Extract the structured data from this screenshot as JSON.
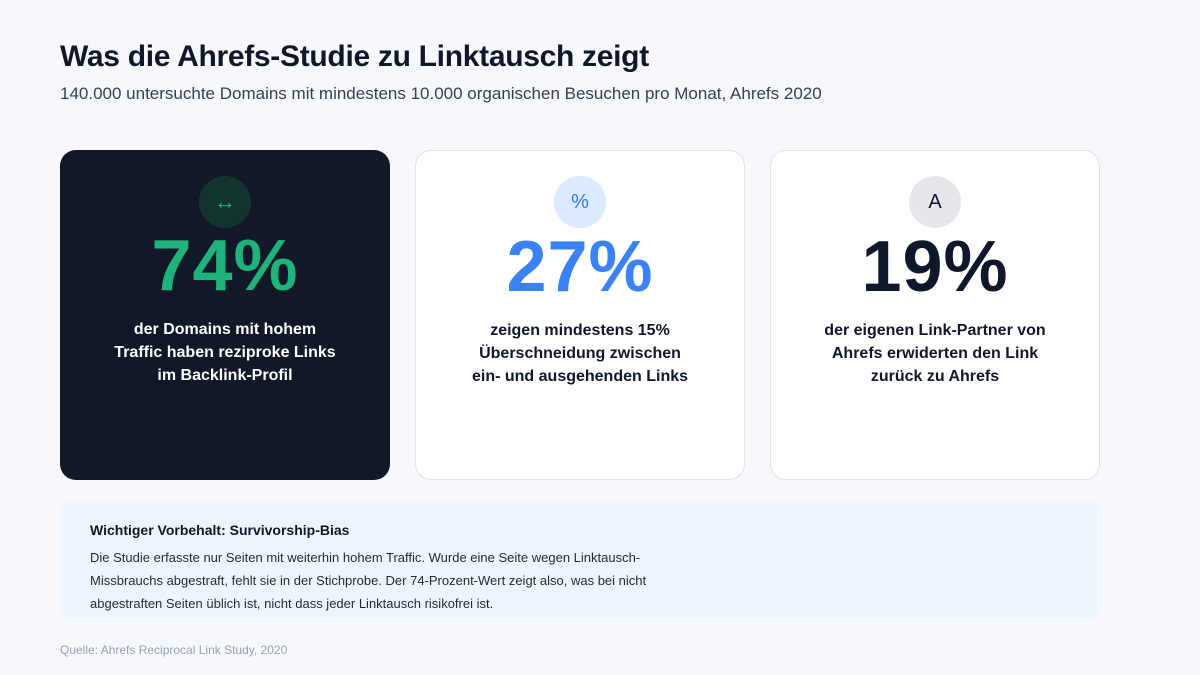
{
  "header": {
    "title": "Was die Ahrefs-Studie zu Linktausch zeigt",
    "subtitle": "140.000 untersuchte Domains mit mindestens 10.000 organischen Besuchen pro Monat, Ahrefs 2020"
  },
  "cards": [
    {
      "icon": "↔",
      "icon_name": "arrows-left-right-icon",
      "stat": "74%",
      "stat_color": "#1fb27b",
      "background": "#111827",
      "description": "der Domains mit hohem Traffic haben reziproke Links im Backlink-Profil"
    },
    {
      "icon": "%",
      "icon_name": "percent-icon",
      "stat": "27%",
      "stat_color": "#3b82f6",
      "background": "#ffffff",
      "description": "zeigen mindestens 15% Überschneidung zwischen ein- und ausgehenden Links"
    },
    {
      "icon": "A",
      "icon_name": "letter-a-icon",
      "stat": "19%",
      "stat_color": "#0f172a",
      "background": "#ffffff",
      "description": "der eigenen Link-Partner von Ahrefs erwiderten den Link zurück zu Ahrefs"
    }
  ],
  "note": {
    "title": "Wichtiger Vorbehalt: Survivorship-Bias",
    "text": "Die Studie erfasste nur Seiten mit weiterhin hohem Traffic. Wurde eine Seite wegen Linktausch-Missbrauchs abgestraft, fehlt sie in der Stichprobe. Der 74-Prozent-Wert zeigt also, was bei nicht abgestraften Seiten üblich ist, nicht dass jeder Linktausch risikofrei ist."
  },
  "source": "Quelle: Ahrefs Reciprocal Link Study, 2020"
}
